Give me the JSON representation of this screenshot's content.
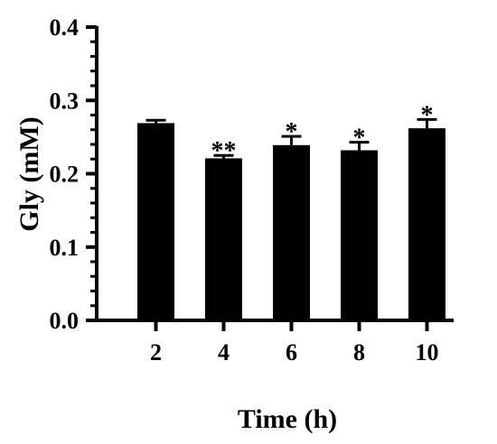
{
  "chart_data": {
    "type": "bar",
    "xlabel": "Time (h)",
    "ylabel": "Gly (mM)",
    "categories": [
      "2",
      "4",
      "6",
      "8",
      "10"
    ],
    "values": [
      0.269,
      0.221,
      0.239,
      0.232,
      0.262
    ],
    "error": [
      0.004,
      0.004,
      0.012,
      0.011,
      0.012
    ],
    "significance": [
      "",
      "**",
      "*",
      "*",
      "*"
    ],
    "ylim": [
      0,
      0.4
    ],
    "yticks": [
      "0.0",
      "0.1",
      "0.2",
      "0.3",
      "0.4"
    ],
    "grid": false,
    "legend": "none",
    "bar_color": "#000000"
  }
}
